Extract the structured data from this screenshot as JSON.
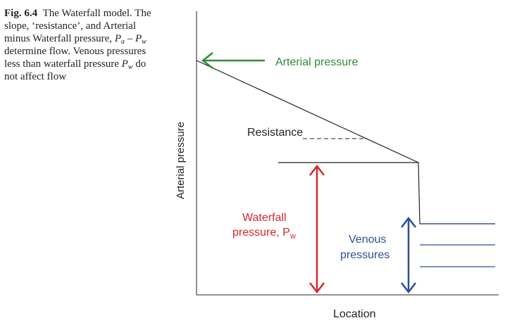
{
  "caption": {
    "fig_label": "Fig. 6.4",
    "text_1": "The Waterfall model. The slope, ‘resistance’, and Arterial minus Waterfall pressure,",
    "pa_symbol": "P",
    "pa_sub": "a",
    "minus": " – ",
    "pw_symbol": "P",
    "pw_sub": "w",
    "text_2": " determine flow. Venous pressures less than waterfall pressure ",
    "pw2_symbol": "P",
    "pw2_sub": "w",
    "text_3": " do not affect flow"
  },
  "diagram": {
    "y_axis_label": "Arterial pressure",
    "x_axis_label": "Location",
    "arterial_label": "Arterial pressure",
    "resistance_label": "Resistance",
    "waterfall_label_line1": "Waterfall",
    "waterfall_label_line2": "pressure, P",
    "waterfall_label_sub": "w",
    "venous_label_line1": "Venous",
    "venous_label_line2": "pressures"
  },
  "colors": {
    "green": "#2e8b3a",
    "red": "#d9262b",
    "blue": "#2c4f96",
    "black": "#222222"
  }
}
